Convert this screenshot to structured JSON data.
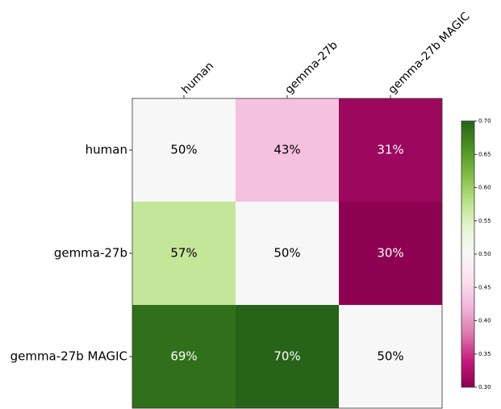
{
  "chart_data": {
    "type": "heatmap",
    "x_categories": [
      "human",
      "gemma-27b",
      "gemma-27b MAGIC"
    ],
    "y_categories": [
      "human",
      "gemma-27b",
      "gemma-27b MAGIC"
    ],
    "values": [
      [
        0.5,
        0.43,
        0.31
      ],
      [
        0.57,
        0.5,
        0.3
      ],
      [
        0.69,
        0.7,
        0.5
      ]
    ],
    "value_labels": [
      [
        "50%",
        "43%",
        "31%"
      ],
      [
        "57%",
        "50%",
        "30%"
      ],
      [
        "69%",
        "70%",
        "50%"
      ]
    ],
    "clim": [
      0.3,
      0.7
    ],
    "cticks": [
      {
        "value": 0.3,
        "label": "0.30"
      },
      {
        "value": 0.35,
        "label": "0.35"
      },
      {
        "value": 0.4,
        "label": "0.40"
      },
      {
        "value": 0.45,
        "label": "0.45"
      },
      {
        "value": 0.5,
        "label": "0.50"
      },
      {
        "value": 0.55,
        "label": "0.55"
      },
      {
        "value": 0.6,
        "label": "0.60"
      },
      {
        "value": 0.65,
        "label": "0.65"
      },
      {
        "value": 0.7,
        "label": "0.70"
      }
    ],
    "colorscale": [
      "#8e0152",
      "#c51b7d",
      "#de77ae",
      "#f1b6da",
      "#fde0ef",
      "#f7f7f7",
      "#e6f5d0",
      "#b8e186",
      "#7fbc41",
      "#4d9221",
      "#276419"
    ]
  }
}
